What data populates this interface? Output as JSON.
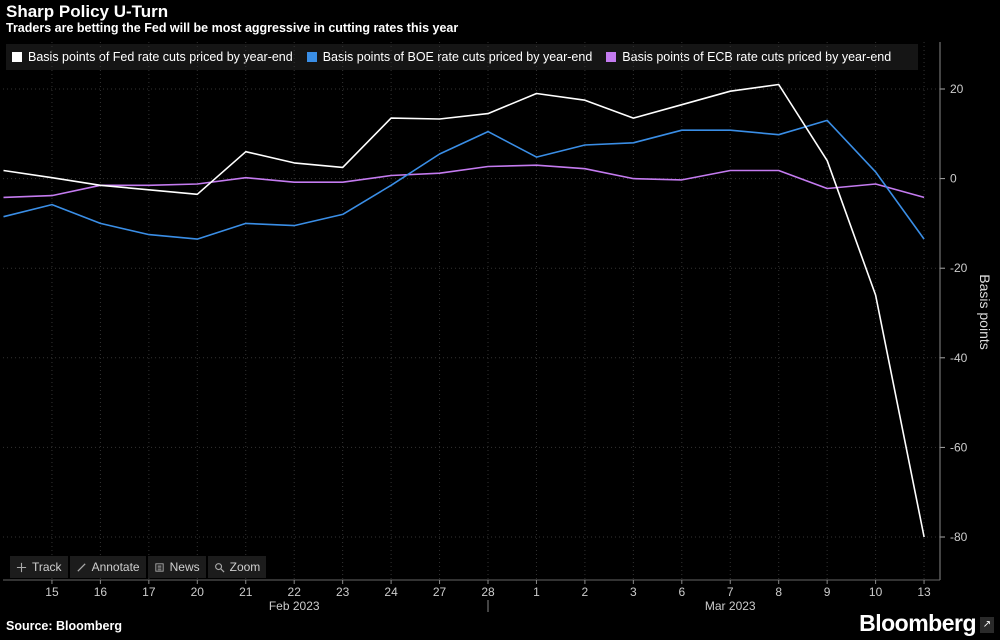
{
  "header": {
    "title": "Sharp Policy U-Turn",
    "subtitle": "Traders are betting the Fed will be most aggressive in cutting rates this year"
  },
  "footer": {
    "source": "Source: Bloomberg",
    "logo": "Bloomberg"
  },
  "toolbar": {
    "items": [
      {
        "label": "Track",
        "icon": "crosshair-icon"
      },
      {
        "label": "Annotate",
        "icon": "pencil-icon"
      },
      {
        "label": "News",
        "icon": "news-icon"
      },
      {
        "label": "Zoom",
        "icon": "magnifier-icon"
      }
    ]
  },
  "chart_data": {
    "type": "line",
    "title": "Sharp Policy U-Turn",
    "subtitle": "Traders are betting the Fed will be most aggressive in cutting rates this year",
    "ylabel": "Basis points",
    "ylim": [
      -90,
      30
    ],
    "yticks": [
      20,
      0,
      -20,
      -40,
      -60,
      -80
    ],
    "grid": true,
    "legend_position": "top",
    "x": [
      "2023-02-14",
      "2023-02-15",
      "2023-02-16",
      "2023-02-17",
      "2023-02-20",
      "2023-02-21",
      "2023-02-22",
      "2023-02-23",
      "2023-02-24",
      "2023-02-27",
      "2023-02-28",
      "2023-03-01",
      "2023-03-02",
      "2023-03-03",
      "2023-03-06",
      "2023-03-07",
      "2023-03-08",
      "2023-03-09",
      "2023-03-10",
      "2023-03-13"
    ],
    "xtick_labels": [
      "15",
      "16",
      "17",
      "20",
      "21",
      "22",
      "23",
      "24",
      "27",
      "28",
      "1",
      "2",
      "3",
      "6",
      "7",
      "8",
      "9",
      "10",
      "13"
    ],
    "month_labels": [
      {
        "label": "Feb 2023",
        "at": "2023-02-22"
      },
      {
        "label": "Mar 2023",
        "at": "2023-03-07"
      }
    ],
    "series": [
      {
        "name": "Basis points of Fed rate cuts priced by year-end",
        "color": "#ffffff",
        "values": [
          1.8,
          0.2,
          -1.5,
          -2.5,
          -3.5,
          6.0,
          3.5,
          2.5,
          13.5,
          13.3,
          14.5,
          19.0,
          17.5,
          13.5,
          16.5,
          19.5,
          21.0,
          4.0,
          -26.0,
          -80.0
        ]
      },
      {
        "name": "Basis points of BOE rate cuts priced by year-end",
        "color": "#3a8ee6",
        "values": [
          -8.5,
          -5.8,
          -10.0,
          -12.5,
          -13.5,
          -10.0,
          -10.5,
          -8.0,
          -1.5,
          5.5,
          10.5,
          4.8,
          7.5,
          8.0,
          10.8,
          10.8,
          9.8,
          13.0,
          1.5,
          -13.5
        ]
      },
      {
        "name": "Basis points of ECB rate cuts priced by year-end",
        "color": "#c47bf0",
        "values": [
          -4.2,
          -3.8,
          -1.5,
          -1.5,
          -1.2,
          0.2,
          -0.8,
          -0.8,
          0.7,
          1.2,
          2.7,
          3.0,
          2.2,
          0.0,
          -0.3,
          1.8,
          1.8,
          -2.2,
          -1.2,
          -4.2
        ]
      }
    ]
  }
}
